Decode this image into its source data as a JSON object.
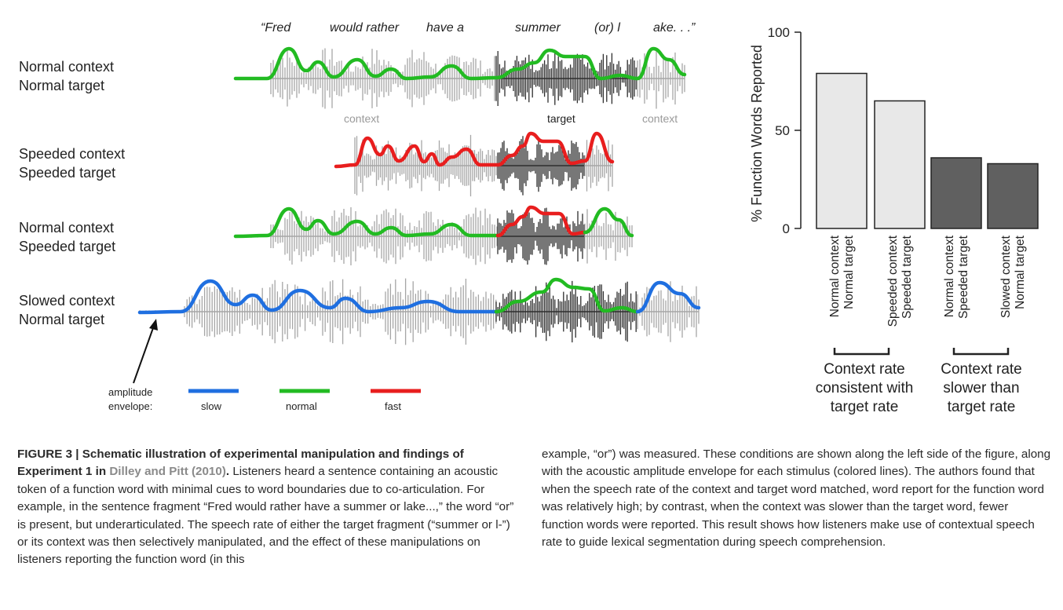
{
  "sentence": {
    "words": [
      "“Fred",
      "would rather",
      "have a",
      "summer",
      "(or) l",
      "ake. . .”"
    ]
  },
  "segment_labels": {
    "context_left": "context",
    "target": "target",
    "context_right": "context"
  },
  "rows": [
    {
      "line1": "Normal context",
      "line2": "Normal target"
    },
    {
      "line1": "Speeded context",
      "line2": "Speeded target"
    },
    {
      "line1": "Normal context",
      "line2": "Speeded target"
    },
    {
      "line1": "Slowed context",
      "line2": "Normal target"
    }
  ],
  "legend": {
    "title_line1": "amplitude",
    "title_line2": "envelope:",
    "items": [
      {
        "label": "slow",
        "color": "#1f6fe0"
      },
      {
        "label": "normal",
        "color": "#22bb22"
      },
      {
        "label": "fast",
        "color": "#e81e1e"
      }
    ]
  },
  "colors": {
    "slow": "#1f6fe0",
    "normal": "#22bb22",
    "fast": "#e81e1e",
    "context_wave": "#a6a6a6",
    "target_wave": "#2e2e2e",
    "bar_consistent": "#e8e8e8",
    "bar_slower": "#606060"
  },
  "chart_data": {
    "type": "bar",
    "ylabel": "% Function Words Reported",
    "ylim": [
      0,
      100
    ],
    "yticks": [
      0,
      50,
      100
    ],
    "categories": [
      {
        "line1": "Normal context",
        "line2": "Normal target"
      },
      {
        "line1": "Speeded context",
        "line2": "Speeded target"
      },
      {
        "line1": "Normal context",
        "line2": "Speeded target"
      },
      {
        "line1": "Slowed context",
        "line2": "Normal target"
      }
    ],
    "values": [
      79,
      65,
      36,
      33
    ],
    "groups": [
      {
        "label_lines": [
          "Context rate",
          "consistent with",
          "target rate"
        ],
        "members": [
          0,
          1
        ]
      },
      {
        "label_lines": [
          "Context rate",
          "slower than",
          "target rate"
        ],
        "members": [
          2,
          3
        ]
      }
    ]
  },
  "caption": {
    "figure_label": "FIGURE 3",
    "separator": " | ",
    "title": "Schematic illustration of experimental manipulation and findings of Experiment 1 in ",
    "citation": "Dilley and Pitt (2010)",
    "title_end": ".",
    "body_left": " Listeners heard a sentence containing an acoustic token of a function word with minimal cues to word boundaries due to co-articulation. For example, in the sentence fragment “Fred would rather have a summer or lake...,” the word “or” is present, but underarticulated. The speech rate of either the target fragment (“summer or l-”) or its context was then selectively manipulated, and the effect of these manipulations on listeners reporting the function word (in this",
    "body_right": "example, “or”) was measured. These conditions are shown along the left side of the figure, along with the acoustic amplitude envelope for each stimulus (colored lines). The authors found that when the speech rate of the context and target word matched, word report for the function word was relatively high; by contrast, when the context was slower than the target word, fewer function words were reported. This result shows how listeners make use of contextual speech rate to guide lexical segmentation during speech comprehension."
  }
}
